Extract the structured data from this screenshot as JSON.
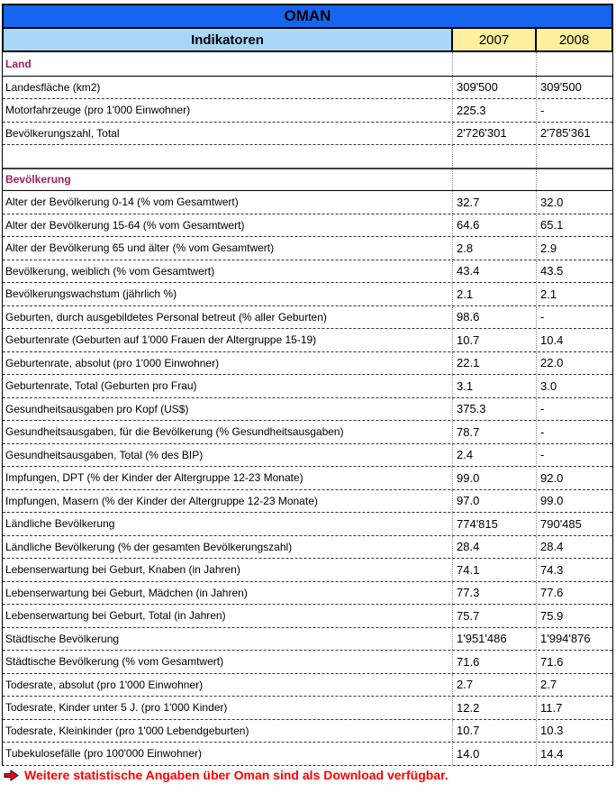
{
  "header": {
    "country": "OMAN",
    "indicator_label": "Indikatoren",
    "years": [
      "2007",
      "2008"
    ]
  },
  "colors": {
    "banner_blue": "#1565EF",
    "header_light_blue": "#A8D7F7",
    "year_yellow": "#FFF0A0",
    "section_magenta": "#A02060",
    "footer_red": "#FF0000"
  },
  "table": {
    "rows": [
      {
        "type": "section",
        "label": "Land",
        "v2007": "",
        "v2008": ""
      },
      {
        "type": "data",
        "label": "Landesfläche (km2)",
        "v2007": "309'500",
        "v2008": "309'500"
      },
      {
        "type": "data",
        "label": "Motorfahrzeuge (pro 1'000 Einwohner)",
        "v2007": "225.3",
        "v2008": "-"
      },
      {
        "type": "data",
        "label": "Bevölkerungszahl, Total",
        "v2007": "2'726'301",
        "v2008": "2'785'361"
      },
      {
        "type": "empty",
        "label": "",
        "v2007": "",
        "v2008": ""
      },
      {
        "type": "section",
        "label": "Bevölkerung",
        "v2007": "",
        "v2008": ""
      },
      {
        "type": "data",
        "label": "Alter der Bevölkerung 0-14 (% vom Gesamtwert)",
        "v2007": "32.7",
        "v2008": "32.0"
      },
      {
        "type": "data",
        "label": "Alter der Bevölkerung 15-64 (% vom Gesamtwert)",
        "v2007": "64.6",
        "v2008": "65.1"
      },
      {
        "type": "data",
        "label": "Alter der Bevölkerung 65 und älter (% vom Gesamtwert)",
        "v2007": "2.8",
        "v2008": "2.9"
      },
      {
        "type": "data",
        "label": "Bevölkerung, weiblich (% vom Gesamtwert)",
        "v2007": "43.4",
        "v2008": "43.5"
      },
      {
        "type": "data",
        "label": "Bevölkerungswachstum (jährlich %)",
        "v2007": "2.1",
        "v2008": "2.1"
      },
      {
        "type": "data",
        "label": "Geburten, durch ausgebildetes Personal betreut (% aller Geburten)",
        "v2007": "98.6",
        "v2008": "-"
      },
      {
        "type": "data",
        "label": "Geburtenrate (Geburten auf 1'000 Frauen der Altergruppe 15-19)",
        "v2007": "10.7",
        "v2008": "10.4"
      },
      {
        "type": "data",
        "label": "Geburtenrate, absolut (pro 1'000 Einwohner)",
        "v2007": "22.1",
        "v2008": "22.0"
      },
      {
        "type": "data",
        "label": "Geburtenrate, Total (Geburten pro Frau)",
        "v2007": "3.1",
        "v2008": "3.0"
      },
      {
        "type": "data",
        "label": "Gesundheitsausgaben pro Kopf (US$)",
        "v2007": "375.3",
        "v2008": "-"
      },
      {
        "type": "data",
        "label": "Gesundheitsausgaben, für die Bevölkerung (% Gesundheitsausgaben)",
        "v2007": "78.7",
        "v2008": "-"
      },
      {
        "type": "data",
        "label": "Gesundheitsausgaben, Total (% des BIP)",
        "v2007": "2.4",
        "v2008": "-"
      },
      {
        "type": "data",
        "label": "Impfungen, DPT (% der Kinder der Altergruppe 12-23 Monate)",
        "v2007": "99.0",
        "v2008": "92.0"
      },
      {
        "type": "data",
        "label": "Impfungen, Masern (% der Kinder der Altergruppe 12-23 Monate)",
        "v2007": "97.0",
        "v2008": "99.0"
      },
      {
        "type": "data",
        "label": "Ländliche Bevölkerung",
        "v2007": "774'815",
        "v2008": "790'485"
      },
      {
        "type": "data",
        "label": "Ländliche Bevölkerung (% der gesamten Bevölkerungszahl)",
        "v2007": "28.4",
        "v2008": "28.4"
      },
      {
        "type": "data",
        "label": "Lebenserwartung bei Geburt, Knaben (in Jahren)",
        "v2007": "74.1",
        "v2008": "74.3"
      },
      {
        "type": "data",
        "label": "Lebenserwartung bei Geburt, Mädchen (in Jahren)",
        "v2007": "77.3",
        "v2008": "77.6"
      },
      {
        "type": "data",
        "label": "Lebenserwartung bei Geburt, Total (in Jahren)",
        "v2007": "75.7",
        "v2008": "75.9"
      },
      {
        "type": "data",
        "label": "Städtische Bevölkerung",
        "v2007": "1'951'486",
        "v2008": "1'994'876"
      },
      {
        "type": "data",
        "label": "Städtische Bevölkerung (% vom Gesamtwert)",
        "v2007": "71.6",
        "v2008": "71.6"
      },
      {
        "type": "data",
        "label": "Todesrate, absolut (pro 1'000 Einwohner)",
        "v2007": "2.7",
        "v2008": "2.7"
      },
      {
        "type": "data",
        "label": "Todesrate, Kinder unter 5 J. (pro 1'000 Kinder)",
        "v2007": "12.2",
        "v2008": "11.7"
      },
      {
        "type": "data",
        "label": "Todesrate, Kleinkinder (pro 1'000 Lebendgeburten)",
        "v2007": "10.7",
        "v2008": "10.3"
      },
      {
        "type": "data",
        "label": "Tubekulosefälle (pro 100'000 Einwohner)",
        "v2007": "14.0",
        "v2008": "14.4"
      }
    ]
  },
  "footer": {
    "arrow_icon": "right-arrow",
    "note": "Weitere statistische Angaben über Oman sind als Download verfügbar."
  }
}
